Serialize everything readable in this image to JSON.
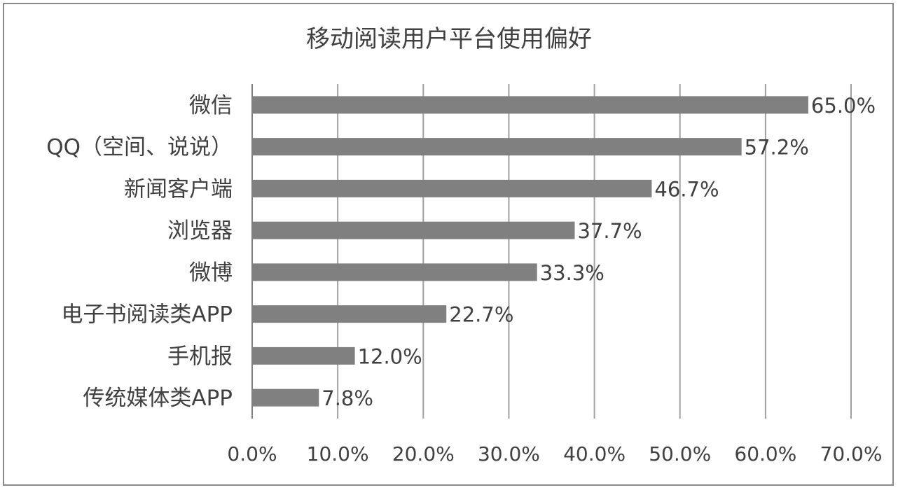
{
  "chart_data": {
    "type": "bar",
    "orientation": "horizontal",
    "title": "移动阅读用户平台使用偏好",
    "xlabel": "",
    "ylabel": "",
    "categories": [
      "微信",
      "QQ（空间、说说）",
      "新闻客户端",
      "浏览器",
      "微博",
      "电子书阅读类APP",
      "手机报",
      "传统媒体类APP"
    ],
    "values": [
      65.0,
      57.2,
      46.7,
      37.7,
      33.3,
      22.7,
      12.0,
      7.8
    ],
    "value_labels": [
      "65.0%",
      "57.2%",
      "46.7%",
      "37.7%",
      "33.3%",
      "22.7%",
      "12.0%",
      "7.8%"
    ],
    "xlim": [
      0,
      70
    ],
    "ticks": [
      0,
      10,
      20,
      30,
      40,
      50,
      60,
      70
    ],
    "tick_labels": [
      "0.0%",
      "10.0%",
      "20.0%",
      "30.0%",
      "40.0%",
      "50.0%",
      "60.0%",
      "70.0%"
    ],
    "grid": true,
    "legend": "none",
    "bar_color": "#808080",
    "grid_color": "#a0a0a0"
  }
}
